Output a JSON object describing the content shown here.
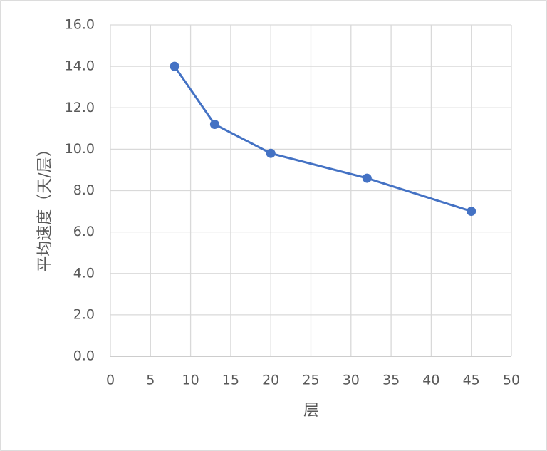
{
  "chart_data": {
    "type": "line",
    "x_label": "层",
    "y_label": "平均速度（天/层）",
    "x": [
      8,
      13,
      20,
      32,
      45
    ],
    "values": [
      14.0,
      11.2,
      9.8,
      8.6,
      7.0
    ],
    "color": "#4472c4",
    "xlim": [
      0,
      50
    ],
    "xticks": [
      0,
      5,
      10,
      15,
      20,
      25,
      30,
      35,
      40,
      45,
      50
    ],
    "ylim": [
      0,
      16
    ],
    "yticks": [
      {
        "value": 0,
        "label": "0.0"
      },
      {
        "value": 2,
        "label": "2.0"
      },
      {
        "value": 4,
        "label": "4.0"
      },
      {
        "value": 6,
        "label": "6.0"
      },
      {
        "value": 8,
        "label": "8.0"
      },
      {
        "value": 10,
        "label": "10.0"
      },
      {
        "value": 12,
        "label": "12.0"
      },
      {
        "value": 14,
        "label": "14.0"
      },
      {
        "value": 16,
        "label": "16.0"
      }
    ],
    "grid": true
  }
}
